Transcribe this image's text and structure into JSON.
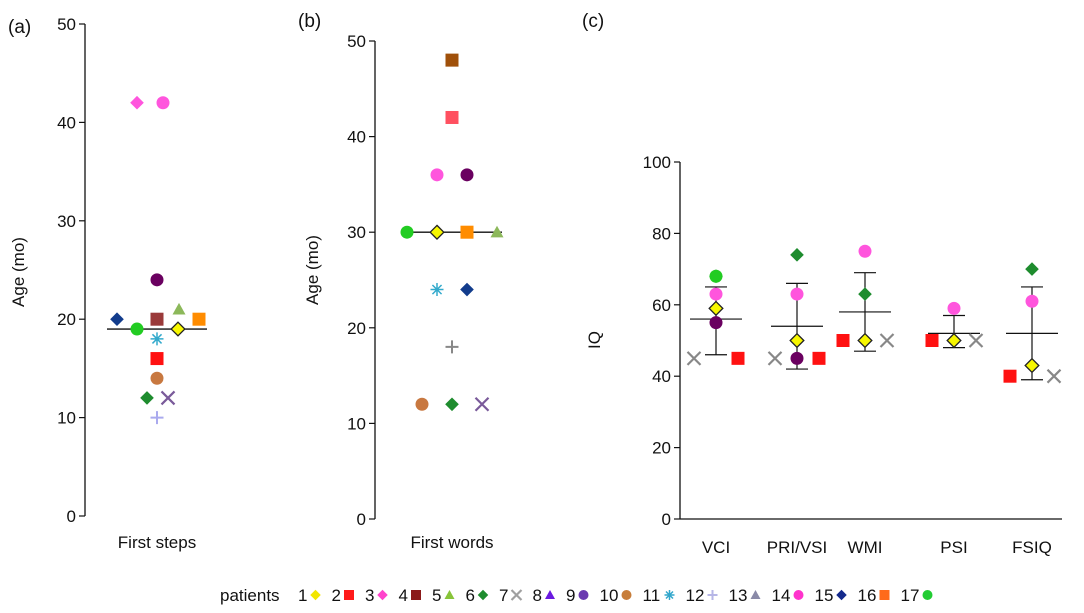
{
  "colors": {
    "p1": "#f2e600",
    "p2": "#ff1a1a",
    "p3": "#ff44cc",
    "p4": "#8b1a1a",
    "p5": "#88c43a",
    "p6": "#1e8c2e",
    "p7": "#a0a0a0",
    "p8": "#6a1ae0",
    "p9": "#6a3ab0",
    "p10": "#c77d3a",
    "p11": "#33a7cc",
    "p12": "#b6b6e6",
    "p13": "#8a8aa8",
    "p14": "#ff33cc",
    "p15": "#142a8c",
    "p16": "#ff6a1a",
    "p17": "#22cc33",
    "c_pink": "#ff55dd",
    "c_purple": "#6a0060",
    "c_maroon": "#9a3a3a",
    "c_orange": "#ff8c00",
    "c_red": "#ff1111",
    "c_green": "#1e8c2e",
    "c_olive": "#8cb85a",
    "c_navy": "#123c8c",
    "c_bgreen": "#22cc22",
    "c_brown": "#a0500a",
    "c_salmon": "#ff5060",
    "c_tan": "#c87840",
    "c_cyan": "#33aacc",
    "c_lilac": "#aaaaee",
    "c_gray": "#888888",
    "c_xpurple": "#7a5a9a",
    "c_yellow": "#f7f700"
  },
  "chart_data": [
    {
      "panel_label": "(a)",
      "type": "scatter",
      "categories": [
        "First steps"
      ],
      "ylabel": "Age (mo)",
      "ylim": [
        0,
        50
      ],
      "yticks": [
        "0",
        "10",
        "20",
        "30",
        "40",
        "50"
      ],
      "median": 19,
      "points": [
        {
          "offset": -1.0,
          "y": 42,
          "shape": "diamond",
          "color": "c_pink"
        },
        {
          "offset": 0.3,
          "y": 42,
          "shape": "circle",
          "color": "c_pink"
        },
        {
          "offset": 0.0,
          "y": 24,
          "shape": "circle",
          "color": "c_purple"
        },
        {
          "offset": 1.1,
          "y": 21,
          "shape": "triangle",
          "color": "c_olive"
        },
        {
          "offset": -2.0,
          "y": 20,
          "shape": "diamond",
          "color": "c_navy"
        },
        {
          "offset": 0.0,
          "y": 20,
          "shape": "square",
          "color": "c_maroon"
        },
        {
          "offset": 2.1,
          "y": 20,
          "shape": "square",
          "color": "c_orange"
        },
        {
          "offset": -1.0,
          "y": 19,
          "shape": "circle",
          "color": "c_bgreen"
        },
        {
          "offset": 1.05,
          "y": 19,
          "shape": "diamond",
          "color": "c_yellow"
        },
        {
          "offset": 0.0,
          "y": 18,
          "shape": "asterisk",
          "color": "c_cyan"
        },
        {
          "offset": 0.0,
          "y": 16,
          "shape": "square",
          "color": "c_red"
        },
        {
          "offset": 0.0,
          "y": 14,
          "shape": "circle",
          "color": "c_tan"
        },
        {
          "offset": -0.5,
          "y": 12,
          "shape": "diamond",
          "color": "c_green"
        },
        {
          "offset": 0.55,
          "y": 12,
          "shape": "x",
          "color": "c_xpurple"
        },
        {
          "offset": 0.0,
          "y": 10,
          "shape": "plus",
          "color": "c_lilac"
        }
      ]
    },
    {
      "panel_label": "(b)",
      "type": "scatter",
      "categories": [
        "First words"
      ],
      "ylabel": "Age (mo)",
      "ylim": [
        0,
        50
      ],
      "yticks": [
        "0",
        "10",
        "20",
        "30",
        "40",
        "50"
      ],
      "median": 30,
      "points": [
        {
          "offset": 0.0,
          "y": 48,
          "shape": "square",
          "color": "c_brown"
        },
        {
          "offset": 0.0,
          "y": 42,
          "shape": "square",
          "color": "c_salmon"
        },
        {
          "offset": -0.5,
          "y": 36,
          "shape": "circle",
          "color": "c_pink"
        },
        {
          "offset": 0.5,
          "y": 36,
          "shape": "circle",
          "color": "c_purple"
        },
        {
          "offset": -1.5,
          "y": 30,
          "shape": "circle",
          "color": "c_bgreen"
        },
        {
          "offset": -0.5,
          "y": 30,
          "shape": "diamond",
          "color": "c_yellow"
        },
        {
          "offset": 0.5,
          "y": 30,
          "shape": "square",
          "color": "c_orange"
        },
        {
          "offset": 1.5,
          "y": 30,
          "shape": "triangle",
          "color": "c_olive"
        },
        {
          "offset": -0.5,
          "y": 24,
          "shape": "asterisk",
          "color": "c_cyan"
        },
        {
          "offset": 0.5,
          "y": 24,
          "shape": "diamond",
          "color": "c_navy"
        },
        {
          "offset": 0.0,
          "y": 18,
          "shape": "plus",
          "color": "c_gray"
        },
        {
          "offset": -1.0,
          "y": 12,
          "shape": "circle",
          "color": "c_tan"
        },
        {
          "offset": 0.0,
          "y": 12,
          "shape": "diamond",
          "color": "c_green"
        },
        {
          "offset": 1.0,
          "y": 12,
          "shape": "x",
          "color": "c_xpurple"
        }
      ]
    },
    {
      "panel_label": "(c)",
      "type": "scatter",
      "categories": [
        "VCI",
        "PRI/VSI",
        "WMI",
        "PSI",
        "FSIQ"
      ],
      "ylabel": "IQ",
      "ylim": [
        0,
        100
      ],
      "yticks": [
        "0",
        "20",
        "40",
        "60",
        "80",
        "100"
      ],
      "summary": [
        {
          "category": "VCI",
          "mean": 56,
          "low": 46,
          "high": 65
        },
        {
          "category": "PRI/VSI",
          "mean": 54,
          "low": 42,
          "high": 66
        },
        {
          "category": "WMI",
          "mean": 58,
          "low": 47,
          "high": 69
        },
        {
          "category": "PSI",
          "mean": 52,
          "low": 48,
          "high": 57
        },
        {
          "category": "FSIQ",
          "mean": 52,
          "low": 39,
          "high": 65
        }
      ],
      "points": [
        {
          "category": "VCI",
          "offset": 0.0,
          "y": 68,
          "shape": "diamond",
          "color": "c_green"
        },
        {
          "category": "VCI",
          "offset": 0.0,
          "y": 68,
          "shape": "circle",
          "color": "c_bgreen"
        },
        {
          "category": "VCI",
          "offset": 0.0,
          "y": 63,
          "shape": "circle",
          "color": "c_pink"
        },
        {
          "category": "VCI",
          "offset": 0.0,
          "y": 59,
          "shape": "diamond",
          "color": "c_yellow"
        },
        {
          "category": "VCI",
          "offset": 0.0,
          "y": 55,
          "shape": "circle",
          "color": "c_purple"
        },
        {
          "category": "VCI",
          "offset": -1.0,
          "y": 45,
          "shape": "x",
          "color": "c_gray"
        },
        {
          "category": "VCI",
          "offset": 1.0,
          "y": 45,
          "shape": "square",
          "color": "c_red"
        },
        {
          "category": "PRI/VSI",
          "offset": 0.0,
          "y": 74,
          "shape": "diamond",
          "color": "c_green"
        },
        {
          "category": "PRI/VSI",
          "offset": 0.0,
          "y": 63,
          "shape": "circle",
          "color": "c_pink"
        },
        {
          "category": "PRI/VSI",
          "offset": 0.0,
          "y": 50,
          "shape": "diamond",
          "color": "c_yellow"
        },
        {
          "category": "PRI/VSI",
          "offset": -1.0,
          "y": 45,
          "shape": "x",
          "color": "c_gray"
        },
        {
          "category": "PRI/VSI",
          "offset": 0.0,
          "y": 45,
          "shape": "circle",
          "color": "c_purple"
        },
        {
          "category": "PRI/VSI",
          "offset": 1.0,
          "y": 45,
          "shape": "square",
          "color": "c_red"
        },
        {
          "category": "WMI",
          "offset": 0.0,
          "y": 75,
          "shape": "circle",
          "color": "c_pink"
        },
        {
          "category": "WMI",
          "offset": 0.0,
          "y": 63,
          "shape": "diamond",
          "color": "c_green"
        },
        {
          "category": "WMI",
          "offset": -1.0,
          "y": 50,
          "shape": "square",
          "color": "c_red"
        },
        {
          "category": "WMI",
          "offset": 0.0,
          "y": 50,
          "shape": "diamond",
          "color": "c_yellow"
        },
        {
          "category": "WMI",
          "offset": 1.0,
          "y": 50,
          "shape": "x",
          "color": "c_gray"
        },
        {
          "category": "PSI",
          "offset": 0.0,
          "y": 59,
          "shape": "circle",
          "color": "c_pink"
        },
        {
          "category": "PSI",
          "offset": -1.0,
          "y": 50,
          "shape": "square",
          "color": "c_red"
        },
        {
          "category": "PSI",
          "offset": 0.0,
          "y": 50,
          "shape": "diamond",
          "color": "c_yellow"
        },
        {
          "category": "PSI",
          "offset": 1.0,
          "y": 50,
          "shape": "x",
          "color": "c_gray"
        },
        {
          "category": "FSIQ",
          "offset": 0.0,
          "y": 70,
          "shape": "diamond",
          "color": "c_green"
        },
        {
          "category": "FSIQ",
          "offset": 0.0,
          "y": 61,
          "shape": "circle",
          "color": "c_pink"
        },
        {
          "category": "FSIQ",
          "offset": 0.0,
          "y": 43,
          "shape": "diamond",
          "color": "c_yellow"
        },
        {
          "category": "FSIQ",
          "offset": -1.0,
          "y": 40,
          "shape": "square",
          "color": "c_red"
        },
        {
          "category": "FSIQ",
          "offset": 1.0,
          "y": 40,
          "shape": "x",
          "color": "c_gray"
        }
      ]
    }
  ],
  "legend": {
    "title": "patients",
    "entries": [
      {
        "label": "1",
        "shape": "diamond",
        "color": "p1"
      },
      {
        "label": "2",
        "shape": "square",
        "color": "p2"
      },
      {
        "label": "3",
        "shape": "diamond",
        "color": "p3"
      },
      {
        "label": "4",
        "shape": "square",
        "color": "p4"
      },
      {
        "label": "5",
        "shape": "triangle",
        "color": "p5"
      },
      {
        "label": "6",
        "shape": "diamond",
        "color": "p6"
      },
      {
        "label": "7",
        "shape": "x",
        "color": "p7"
      },
      {
        "label": "8",
        "shape": "triangle",
        "color": "p8"
      },
      {
        "label": "9",
        "shape": "circle",
        "color": "p9"
      },
      {
        "label": "10",
        "shape": "circle",
        "color": "p10"
      },
      {
        "label": "11",
        "shape": "asterisk",
        "color": "p11"
      },
      {
        "label": "12",
        "shape": "plus",
        "color": "p12"
      },
      {
        "label": "13",
        "shape": "triangle",
        "color": "p13"
      },
      {
        "label": "14",
        "shape": "circle",
        "color": "p14"
      },
      {
        "label": "15",
        "shape": "diamond",
        "color": "p15"
      },
      {
        "label": "16",
        "shape": "square",
        "color": "p16"
      },
      {
        "label": "17",
        "shape": "circle",
        "color": "p17"
      }
    ]
  }
}
